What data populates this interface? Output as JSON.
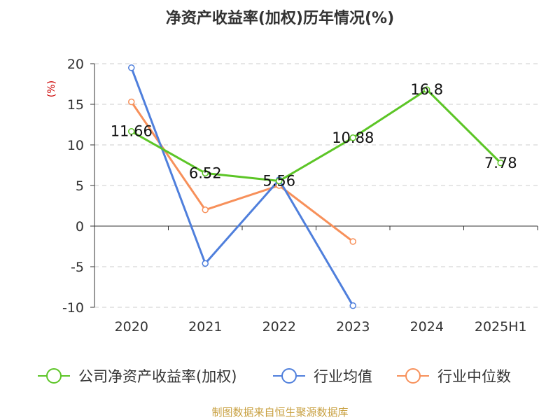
{
  "chart_data": {
    "type": "line",
    "title": "净资产收益率(加权)历年情况(%)",
    "ylabel": "(%)",
    "categories": [
      "2020",
      "2021",
      "2022",
      "2023",
      "2024",
      "2025H1"
    ],
    "ylim": [
      -10,
      20
    ],
    "yticks": [
      -10,
      -5,
      0,
      5,
      10,
      15,
      20
    ],
    "grid": true,
    "legend_position": "bottom",
    "series": [
      {
        "name": "公司净资产收益率(加权)",
        "color": "#5cc526",
        "values": [
          11.66,
          6.52,
          5.56,
          10.88,
          16.8,
          7.78
        ],
        "labels": [
          "11.66",
          "6.52",
          "5.56",
          "10.88",
          "16.8",
          "7.78"
        ]
      },
      {
        "name": "行业均值",
        "color": "#4f7fdc",
        "values": [
          19.5,
          -4.6,
          5.7,
          -9.8,
          null,
          null
        ]
      },
      {
        "name": "行业中位数",
        "color": "#f7905a",
        "values": [
          15.3,
          2.0,
          5.0,
          -1.9,
          null,
          null
        ]
      }
    ]
  },
  "source": "制图数据来自恒生聚源数据库"
}
